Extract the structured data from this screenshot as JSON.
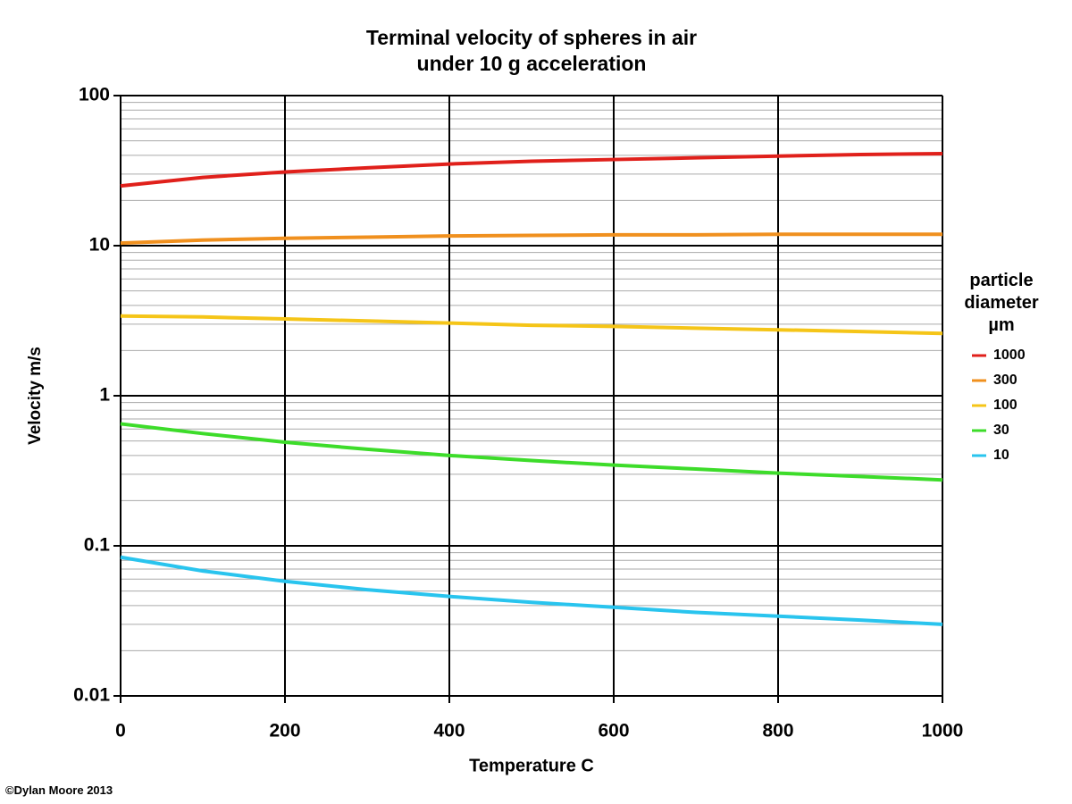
{
  "chart_data": {
    "type": "line",
    "title": "Terminal velocity of spheres in air\nunder 10 g acceleration",
    "x_label": "Temperature C",
    "y_label": "Velocity m/s",
    "legend_title": "particle\ndiameter\nµm",
    "annotation": "©Dylan Moore 2013",
    "x": [
      0,
      100,
      200,
      300,
      400,
      500,
      600,
      700,
      800,
      900,
      1000
    ],
    "series": [
      {
        "name": "1000",
        "color": "#e0201b",
        "values": [
          25,
          28.5,
          31,
          33,
          35,
          36.5,
          37.5,
          38.5,
          39.5,
          40.5,
          41
        ]
      },
      {
        "name": "300",
        "color": "#f0901e",
        "values": [
          10.4,
          10.9,
          11.2,
          11.4,
          11.6,
          11.7,
          11.8,
          11.8,
          11.9,
          11.9,
          11.9
        ]
      },
      {
        "name": "100",
        "color": "#f5c518",
        "values": [
          3.4,
          3.35,
          3.25,
          3.15,
          3.05,
          2.95,
          2.9,
          2.82,
          2.75,
          2.68,
          2.6
        ]
      },
      {
        "name": "30",
        "color": "#3ddc2a",
        "values": [
          0.65,
          0.56,
          0.49,
          0.44,
          0.4,
          0.37,
          0.345,
          0.325,
          0.305,
          0.29,
          0.275
        ]
      },
      {
        "name": "10",
        "color": "#29c4ee",
        "values": [
          0.084,
          0.068,
          0.058,
          0.051,
          0.046,
          0.042,
          0.039,
          0.036,
          0.034,
          0.032,
          0.03
        ]
      }
    ],
    "xlim": [
      0,
      1000
    ],
    "xticks": [
      0,
      200,
      400,
      600,
      800,
      1000
    ],
    "ylim": [
      0.01,
      100
    ],
    "yticks": [
      0.01,
      0.1,
      1,
      10,
      100
    ],
    "y_log": true,
    "grid": true,
    "minor_grid": true,
    "legend": "right"
  }
}
